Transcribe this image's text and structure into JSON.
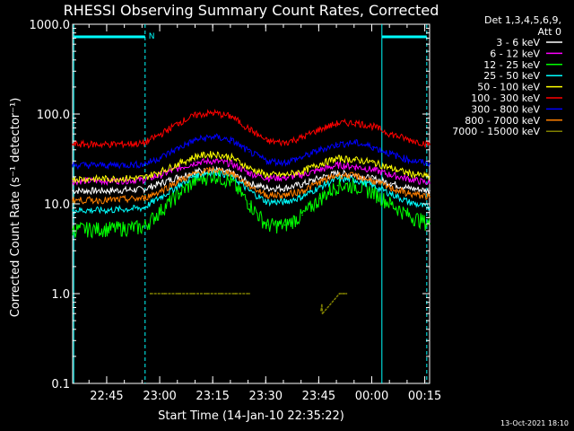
{
  "chart_data": {
    "type": "line",
    "title": "RHESSI Observing Summary Count Rates, Corrected",
    "ylabel": "Corrected Count Rate (s⁻¹ detector⁻¹)",
    "xlabel": "Start Time (14-Jan-10 22:35:22)",
    "footer": "13-Oct-2021 18:10",
    "y_scale": "log",
    "ylim": [
      0.1,
      1000
    ],
    "xlim_minutes": [
      0,
      101
    ],
    "y_ticks": [
      "1000.0",
      "100.0",
      "10.0",
      "1.0",
      "0.1"
    ],
    "y_tick_values": [
      1000,
      100,
      10,
      1,
      0.1
    ],
    "x_ticks": [
      "22:45",
      "23:00",
      "23:15",
      "23:30",
      "23:45",
      "00:00",
      "00:15"
    ],
    "x_tick_minutes": [
      9.63,
      24.63,
      39.63,
      54.63,
      69.63,
      84.63,
      99.63
    ],
    "legend_header": [
      "Det 1,3,4,5,6,9,",
      "Att 0"
    ],
    "night_label": "N",
    "night_intervals": [
      [
        0.3,
        20.5
      ],
      [
        87.5,
        100.2
      ]
    ],
    "series": [
      {
        "name": "3 - 6 keV",
        "color": "#ffffff",
        "x": [
          0,
          10,
          20,
          25,
          30,
          35,
          40,
          45,
          50,
          55,
          60,
          65,
          70,
          75,
          80,
          85,
          90,
          95,
          101
        ],
        "y": [
          14,
          14,
          14.5,
          17,
          20,
          23,
          24,
          22,
          17,
          15,
          15,
          16.5,
          19.5,
          22,
          21,
          19,
          17,
          15,
          14
        ]
      },
      {
        "name": "6 - 12 keV",
        "color": "#ff00ff",
        "x": [
          0,
          10,
          20,
          25,
          30,
          35,
          40,
          45,
          50,
          55,
          60,
          65,
          70,
          75,
          80,
          85,
          90,
          95,
          101
        ],
        "y": [
          18,
          18,
          18.5,
          21,
          25,
          29,
          30,
          28,
          22,
          19.5,
          19.5,
          21,
          24,
          27,
          26,
          24,
          21,
          19,
          17
        ]
      },
      {
        "name": "12 - 25 keV",
        "color": "#00ff00",
        "x": [
          0,
          10,
          20,
          25,
          30,
          35,
          40,
          45,
          50,
          55,
          60,
          65,
          70,
          75,
          80,
          85,
          90,
          95,
          101
        ],
        "y": [
          5.2,
          5.3,
          5.5,
          8.5,
          13,
          18.5,
          21,
          17.5,
          10,
          5.8,
          5.8,
          7.5,
          11.5,
          16,
          16,
          13.5,
          10,
          7.5,
          6
        ]
      },
      {
        "name": "25 - 50 keV",
        "color": "#00ffff",
        "x": [
          0,
          10,
          20,
          25,
          30,
          35,
          40,
          45,
          50,
          55,
          60,
          65,
          70,
          75,
          80,
          85,
          90,
          95,
          101
        ],
        "y": [
          8.5,
          8.5,
          9,
          12,
          16,
          21,
          23,
          20.5,
          14,
          10.5,
          10.5,
          12,
          15.5,
          19,
          18.5,
          16,
          13,
          10.5,
          9
        ]
      },
      {
        "name": "50 - 100 keV",
        "color": "#ffff00",
        "x": [
          0,
          10,
          20,
          25,
          30,
          35,
          40,
          45,
          50,
          55,
          60,
          65,
          70,
          75,
          80,
          85,
          90,
          95,
          101
        ],
        "y": [
          19,
          19,
          19.5,
          23,
          28,
          34,
          36,
          33,
          25,
          21,
          21,
          23,
          28,
          32,
          31,
          29,
          25,
          22,
          20
        ]
      },
      {
        "name": "100 - 300 keV",
        "color": "#ff0000",
        "x": [
          0,
          10,
          20,
          25,
          30,
          35,
          40,
          45,
          50,
          55,
          60,
          65,
          70,
          75,
          80,
          85,
          90,
          95,
          101
        ],
        "y": [
          46,
          46,
          47,
          60,
          80,
          98,
          103,
          94,
          68,
          50,
          48,
          55,
          68,
          79,
          80,
          73,
          60,
          52,
          46
        ]
      },
      {
        "name": "300 - 800 keV",
        "color": "#0000ff",
        "x": [
          0,
          10,
          20,
          25,
          30,
          35,
          40,
          45,
          50,
          55,
          60,
          65,
          70,
          75,
          80,
          85,
          90,
          95,
          101
        ],
        "y": [
          27,
          27,
          27.5,
          33,
          42,
          52,
          56,
          51,
          38,
          30,
          29,
          33,
          40,
          46,
          48,
          43,
          36,
          31,
          28
        ]
      },
      {
        "name": "800 - 7000 keV",
        "color": "#ff8000",
        "x": [
          0,
          10,
          20,
          25,
          30,
          35,
          40,
          45,
          50,
          55,
          60,
          65,
          70,
          75,
          80,
          85,
          90,
          95,
          101
        ],
        "y": [
          11,
          11,
          11.5,
          14,
          18,
          22,
          24,
          22,
          16,
          12.5,
          12.5,
          14,
          17.5,
          21,
          20.5,
          18,
          15,
          13,
          12
        ]
      },
      {
        "name": "7000 - 15000 keV",
        "color": "#808000",
        "x": [
          22,
          26,
          30,
          34,
          38,
          42,
          46,
          50,
          70.3,
          70.5,
          70.7,
          75.5,
          76.5,
          77.5
        ],
        "y": [
          1.0,
          1.0,
          1.0,
          1.0,
          1.0,
          1.0,
          1.0,
          1.0,
          0.65,
          0.75,
          0.6,
          1.0,
          1.0,
          1.0
        ]
      }
    ]
  }
}
